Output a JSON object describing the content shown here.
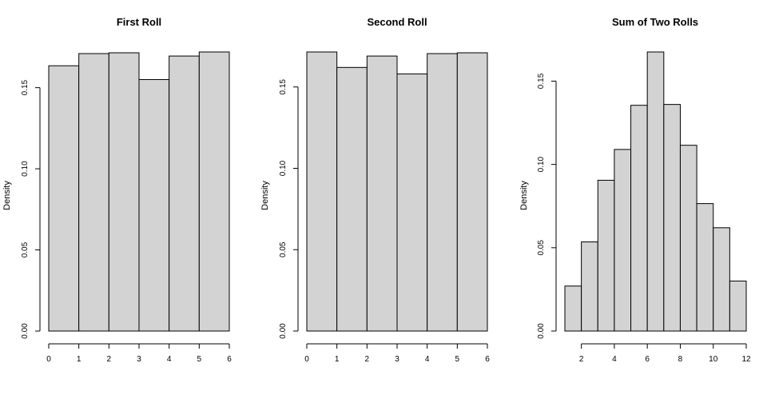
{
  "chart_data": [
    {
      "type": "bar",
      "title": "First Roll",
      "xlabel": "",
      "ylabel": "Density",
      "bins": [
        [
          0,
          1
        ],
        [
          1,
          2
        ],
        [
          2,
          3
        ],
        [
          3,
          4
        ],
        [
          4,
          5
        ],
        [
          5,
          6
        ]
      ],
      "values": [
        0.1635,
        0.171,
        0.1715,
        0.155,
        0.1695,
        0.172
      ],
      "xlim": [
        0,
        6
      ],
      "xticks": [
        0,
        1,
        2,
        3,
        4,
        5,
        6
      ],
      "ylim": [
        0,
        0.172
      ],
      "yticks": [
        0.0,
        0.05,
        0.1,
        0.15
      ],
      "ytick_labels": [
        "0.00",
        "0.05",
        "0.10",
        "0.15"
      ],
      "bar_color": "#d3d3d3",
      "grid": false
    },
    {
      "type": "bar",
      "title": "Second Roll",
      "xlabel": "",
      "ylabel": "Density",
      "bins": [
        [
          0,
          1
        ],
        [
          1,
          2
        ],
        [
          2,
          3
        ],
        [
          3,
          4
        ],
        [
          4,
          5
        ],
        [
          5,
          6
        ]
      ],
      "values": [
        0.1715,
        0.162,
        0.169,
        0.158,
        0.1705,
        0.171
      ],
      "xlim": [
        0,
        6
      ],
      "xticks": [
        0,
        1,
        2,
        3,
        4,
        5,
        6
      ],
      "ylim": [
        0,
        0.1715
      ],
      "yticks": [
        0.0,
        0.05,
        0.1,
        0.15
      ],
      "ytick_labels": [
        "0.00",
        "0.05",
        "0.10",
        "0.15"
      ],
      "bar_color": "#d3d3d3",
      "grid": false
    },
    {
      "type": "bar",
      "title": "Sum of Two Rolls",
      "xlabel": "",
      "ylabel": "Density",
      "bins": [
        [
          1,
          2
        ],
        [
          2,
          3
        ],
        [
          3,
          4
        ],
        [
          4,
          5
        ],
        [
          5,
          6
        ],
        [
          6,
          7
        ],
        [
          7,
          8
        ],
        [
          8,
          9
        ],
        [
          9,
          10
        ],
        [
          10,
          11
        ],
        [
          11,
          12
        ]
      ],
      "values": [
        0.027,
        0.0535,
        0.0905,
        0.109,
        0.1355,
        0.1675,
        0.136,
        0.1115,
        0.0765,
        0.062,
        0.03
      ],
      "xlim": [
        1,
        12
      ],
      "xticks": [
        2,
        4,
        6,
        8,
        10,
        12
      ],
      "ylim": [
        0,
        0.1675
      ],
      "yticks": [
        0.0,
        0.05,
        0.1,
        0.15
      ],
      "ytick_labels": [
        "0.00",
        "0.05",
        "0.10",
        "0.15"
      ],
      "bar_color": "#d3d3d3",
      "grid": false
    }
  ]
}
